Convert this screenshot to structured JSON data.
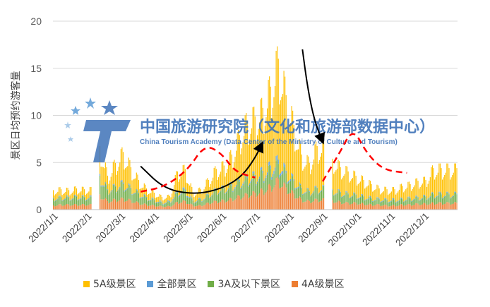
{
  "chart_data": {
    "type": "bar",
    "stacked": true,
    "ylabel": "景区日均预约游客量",
    "ylim": [
      0,
      20
    ],
    "yticks": [
      0,
      5,
      10,
      15,
      20
    ],
    "grid": true,
    "legend_position": "bottom",
    "x_tick_labels": [
      "2022/1/1",
      "2022/2/1",
      "2022/3/1",
      "2022/4/1",
      "2022/5/1",
      "2022/6/1",
      "2022/7/1",
      "2022/8/1",
      "2022/9/1",
      "2022/10/1",
      "2022/11/1",
      "2022/12/1"
    ],
    "series_order_bottom_to_top": [
      "4A级景区",
      "3A及以下景区",
      "全部景区",
      "5A级景区"
    ],
    "series": [
      {
        "name": "5A级景区",
        "color": "#ffc000",
        "total_weekly_peak": [
          2.3,
          2.4,
          2.3,
          2.5,
          2.4,
          0,
          7.5,
          4.0,
          5.5,
          6.8,
          5.0,
          3.5,
          2.5,
          2.0,
          1.5,
          1.6,
          4.5,
          4.8,
          2.0,
          2.4,
          3.5,
          4.8,
          5.2,
          6.5,
          8.8,
          10.5,
          11.0,
          12.0,
          14.5,
          17.8,
          13.5,
          10.0,
          6.5,
          5.5,
          7.5,
          0,
          6.0,
          5.0,
          4.5,
          4.0,
          3.5,
          3.0,
          2.5,
          2.4,
          2.4,
          2.8,
          3.0,
          3.4,
          3.5,
          4.9
        ]
      },
      {
        "name": "全部景区",
        "color": "#5b9bd5",
        "total_weekly_peak": [
          1.4,
          1.5,
          1.5,
          1.6,
          1.5,
          0,
          4.2,
          2.4,
          2.8,
          3.2,
          2.6,
          2.0,
          1.5,
          1.2,
          0.9,
          1.0,
          2.2,
          2.4,
          1.1,
          1.3,
          1.8,
          2.4,
          2.6,
          3.0,
          3.5,
          3.9,
          4.1,
          4.6,
          5.2,
          5.9,
          4.6,
          3.6,
          2.6,
          2.2,
          2.6,
          0,
          2.4,
          2.1,
          1.9,
          1.8,
          1.6,
          1.4,
          1.3,
          1.2,
          1.2,
          1.3,
          1.4,
          1.5,
          1.6,
          1.9
        ]
      },
      {
        "name": "3A及以下景区",
        "color": "#70ad47",
        "total_weekly_peak": [
          1.3,
          1.4,
          1.4,
          1.5,
          1.4,
          0,
          4.0,
          2.3,
          2.7,
          3.0,
          2.5,
          1.9,
          1.4,
          1.1,
          0.8,
          0.9,
          2.0,
          2.2,
          1.0,
          1.2,
          1.7,
          2.3,
          2.5,
          2.8,
          3.3,
          3.7,
          3.9,
          4.3,
          4.8,
          5.4,
          4.3,
          3.4,
          2.5,
          2.1,
          2.5,
          0,
          2.3,
          2.0,
          1.8,
          1.7,
          1.5,
          1.3,
          1.2,
          1.1,
          1.1,
          1.2,
          1.3,
          1.4,
          1.5,
          1.8
        ]
      },
      {
        "name": "4A级景区",
        "color": "#ed7d31",
        "total_weekly_peak": [
          0.5,
          0.6,
          0.6,
          0.6,
          0.6,
          0,
          1.8,
          1.0,
          1.2,
          1.3,
          1.1,
          0.8,
          0.6,
          0.5,
          0.4,
          0.4,
          0.9,
          1.0,
          0.5,
          0.5,
          0.8,
          1.0,
          1.1,
          1.3,
          1.6,
          1.8,
          2.0,
          2.3,
          2.8,
          3.6,
          2.6,
          1.9,
          1.2,
          1.0,
          1.2,
          0,
          1.1,
          0.9,
          0.8,
          0.8,
          0.7,
          0.6,
          0.6,
          0.5,
          0.5,
          0.6,
          0.6,
          0.7,
          0.7,
          0.8
        ]
      }
    ],
    "annotations": [
      {
        "type": "curve",
        "color": "#000000",
        "style": "solid",
        "points": [
          [
            2.6,
            4.6
          ],
          [
            3.3,
            2.2
          ],
          [
            4.2,
            1.6
          ],
          [
            5.0,
            2.2
          ],
          [
            5.6,
            3.5
          ],
          [
            6.0,
            5.5
          ],
          [
            6.2,
            7.0
          ]
        ],
        "arrow": true
      },
      {
        "type": "curve",
        "color": "#000000",
        "style": "solid",
        "points": [
          [
            7.4,
            17.0
          ],
          [
            7.55,
            13.0
          ],
          [
            7.75,
            9.5
          ],
          [
            8.0,
            7.2
          ]
        ],
        "arrow": true
      },
      {
        "type": "curve",
        "color": "#ff0000",
        "style": "dashed",
        "points": [
          [
            2.6,
            1.9
          ],
          [
            3.3,
            2.4
          ],
          [
            4.0,
            4.2
          ],
          [
            4.5,
            6.9
          ],
          [
            5.0,
            6.0
          ],
          [
            5.4,
            4.0
          ],
          [
            6.0,
            3.4
          ]
        ]
      },
      {
        "type": "curve",
        "color": "#ff0000",
        "style": "dashed",
        "points": [
          [
            8.0,
            3.0
          ],
          [
            8.5,
            6.0
          ],
          [
            8.9,
            8.7
          ],
          [
            9.3,
            6.0
          ],
          [
            9.8,
            4.2
          ],
          [
            10.5,
            3.9
          ]
        ]
      }
    ]
  },
  "watermark": {
    "cn": "中国旅游研究院（文化和旅游部数据中心）",
    "en": "China Tourism Academy (Data Center of the Ministry of Culture and Tourism)"
  },
  "legend": [
    {
      "label": "5A级景区",
      "color": "#ffc000"
    },
    {
      "label": "全部景区",
      "color": "#5b9bd5"
    },
    {
      "label": "3A及以下景区",
      "color": "#70ad47"
    },
    {
      "label": "4A级景区",
      "color": "#ed7d31"
    }
  ]
}
